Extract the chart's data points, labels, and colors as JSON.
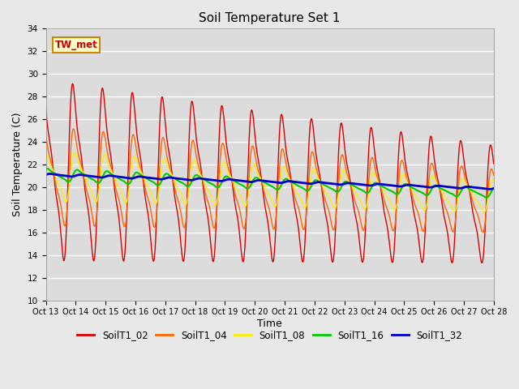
{
  "title": "Soil Temperature Set 1",
  "xlabel": "Time",
  "ylabel": "Soil Temperature (C)",
  "ylim": [
    10,
    34
  ],
  "yticks": [
    10,
    12,
    14,
    16,
    18,
    20,
    22,
    24,
    26,
    28,
    30,
    32,
    34
  ],
  "x_tick_labels": [
    "Oct 13",
    "Oct 14",
    "Oct 15",
    "Oct 16",
    "Oct 17",
    "Oct 18",
    "Oct 19",
    "Oct 20",
    "Oct 21",
    "Oct 22",
    "Oct 23",
    "Oct 24",
    "Oct 25",
    "Oct 26",
    "Oct 27",
    "Oct 28"
  ],
  "series_colors": {
    "SoilT1_02": "#dd0000",
    "SoilT1_04": "#ff6600",
    "SoilT1_08": "#ffee00",
    "SoilT1_16": "#00cc00",
    "SoilT1_32": "#0000cc"
  },
  "series_linewidths": {
    "SoilT1_02": 1.0,
    "SoilT1_04": 1.0,
    "SoilT1_08": 1.0,
    "SoilT1_16": 1.5,
    "SoilT1_32": 2.0
  },
  "annotation_text": "TW_met",
  "annotation_bg": "#ffffcc",
  "annotation_border": "#cc8800",
  "fig_bg_color": "#e8e8e8",
  "plot_bg_color": "#dcdcdc",
  "legend_colors": [
    "#dd0000",
    "#ff6600",
    "#ffee00",
    "#00cc00",
    "#0000cc"
  ],
  "legend_labels": [
    "SoilT1_02",
    "SoilT1_04",
    "SoilT1_08",
    "SoilT1_16",
    "SoilT1_32"
  ]
}
